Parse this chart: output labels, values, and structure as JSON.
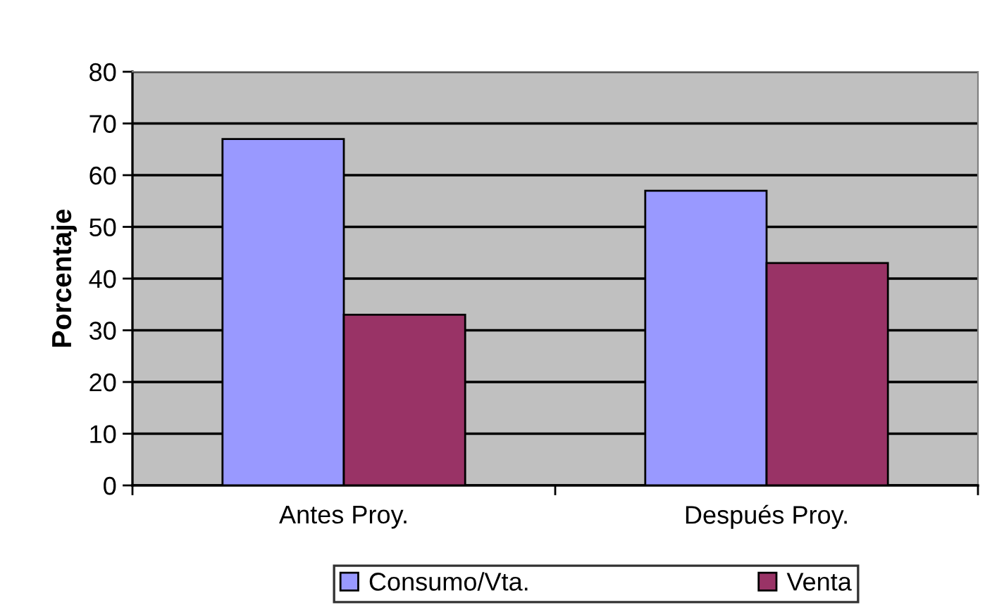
{
  "chart_data": {
    "type": "bar",
    "ylabel": "Porcentaje",
    "categories": [
      "Antes Proy.",
      "Después Proy."
    ],
    "series": [
      {
        "name": "Consumo/Vta.",
        "color": "#9999ff",
        "values": [
          67,
          57
        ]
      },
      {
        "name": "Venta",
        "color": "#993366",
        "values": [
          33,
          43
        ]
      }
    ],
    "ylim": [
      0,
      80
    ],
    "yticks": [
      0,
      10,
      20,
      30,
      40,
      50,
      60,
      70,
      80
    ],
    "grid": "y",
    "legend": "bottom"
  }
}
